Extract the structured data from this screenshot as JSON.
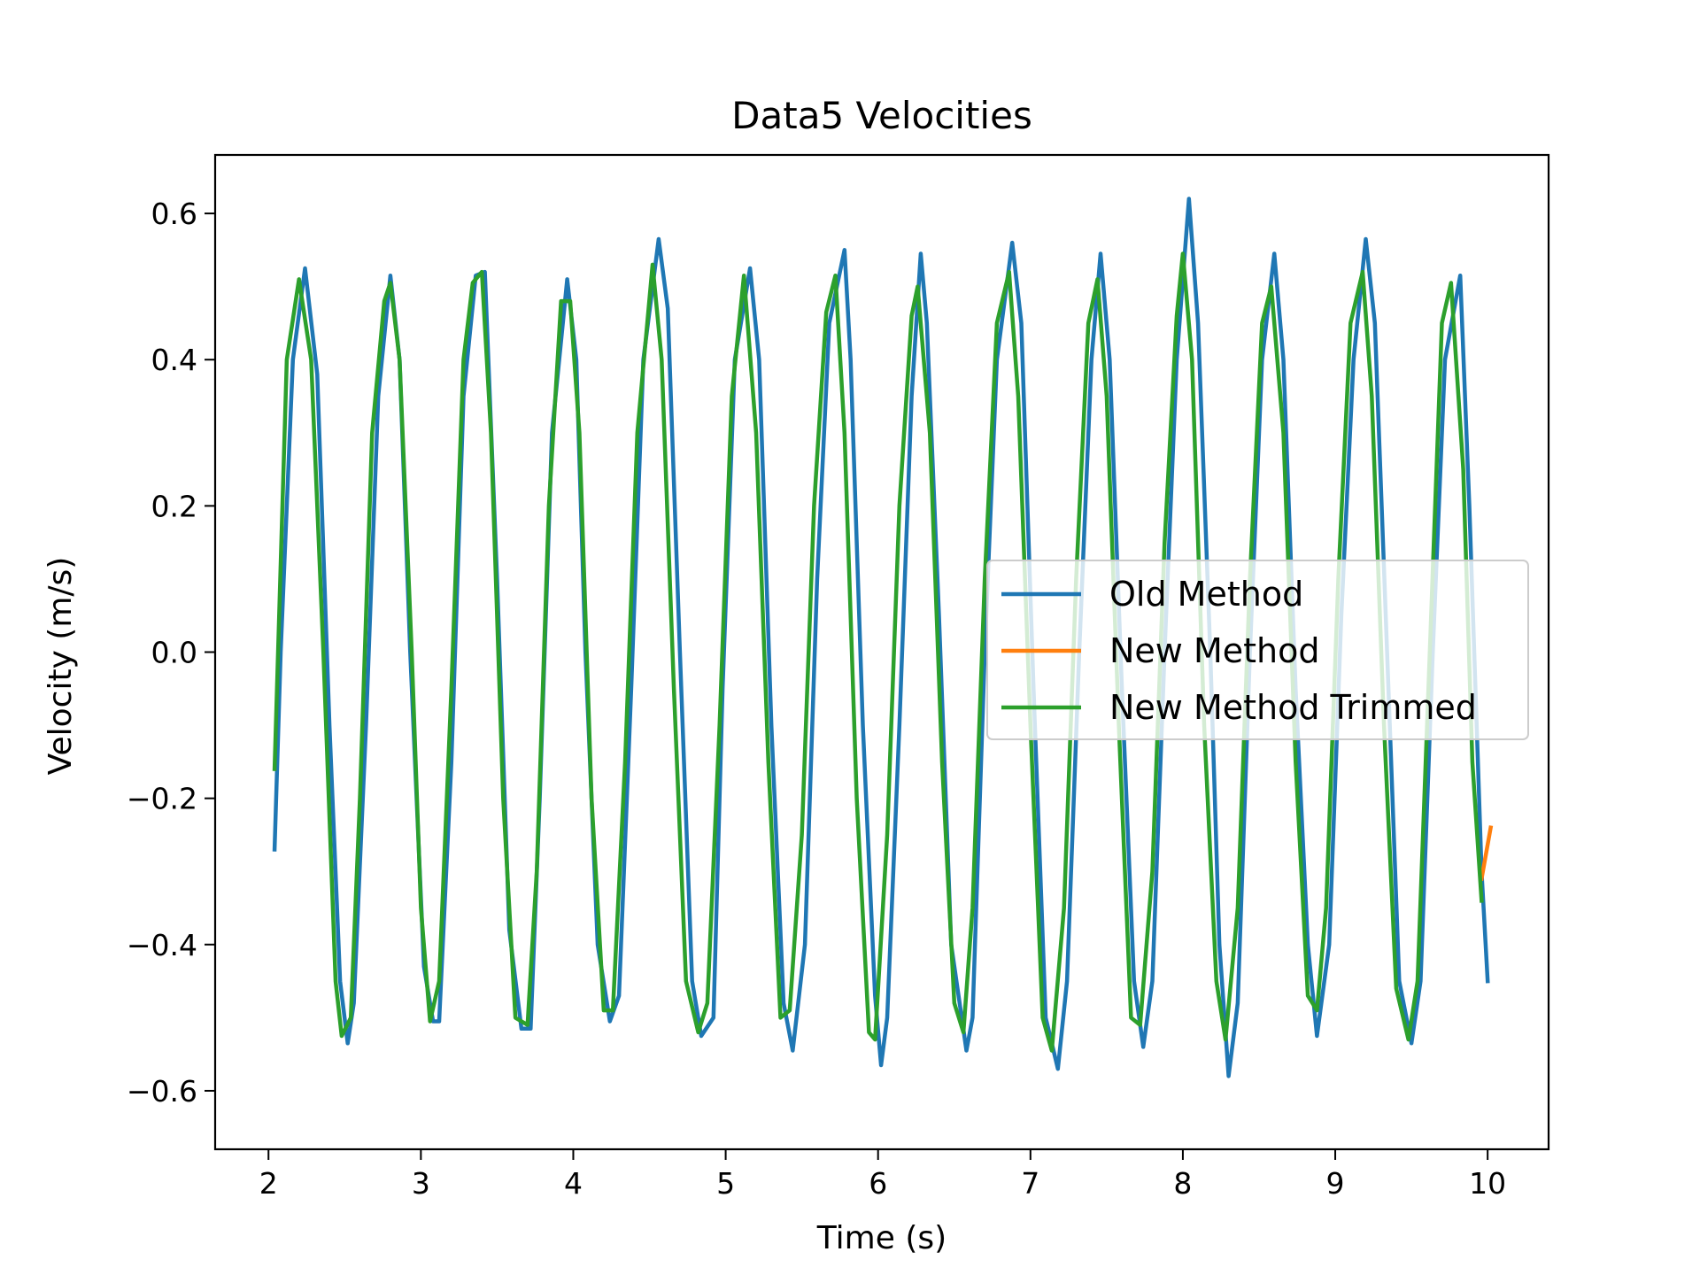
{
  "chart_data": {
    "type": "line",
    "title": "Data5 Velocities",
    "xlabel": "Time (s)",
    "ylabel": "Velocity (m/s)",
    "xlim": [
      1.65,
      10.4
    ],
    "ylim": [
      -0.68,
      0.68
    ],
    "x_ticks": [
      2,
      3,
      4,
      5,
      6,
      7,
      8,
      9,
      10
    ],
    "x_tick_labels": [
      "2",
      "3",
      "4",
      "5",
      "6",
      "7",
      "8",
      "9",
      "10"
    ],
    "y_ticks": [
      -0.6,
      -0.4,
      -0.2,
      0.0,
      0.2,
      0.4,
      0.6
    ],
    "y_tick_labels": [
      "−0.6",
      "−0.4",
      "−0.2",
      "0.0",
      "0.2",
      "0.4",
      "0.6"
    ],
    "grid": false,
    "legend_position": "center-right",
    "series": [
      {
        "name": "Old Method",
        "color": "#1f77b4",
        "points": [
          [
            2.04,
            -0.27
          ],
          [
            2.08,
            0.0
          ],
          [
            2.16,
            0.4
          ],
          [
            2.24,
            0.525
          ],
          [
            2.32,
            0.38
          ],
          [
            2.4,
            -0.1
          ],
          [
            2.47,
            -0.45
          ],
          [
            2.52,
            -0.535
          ],
          [
            2.56,
            -0.48
          ],
          [
            2.64,
            -0.1
          ],
          [
            2.72,
            0.35
          ],
          [
            2.8,
            0.515
          ],
          [
            2.86,
            0.4
          ],
          [
            2.93,
            0.0
          ],
          [
            3.02,
            -0.43
          ],
          [
            3.08,
            -0.505
          ],
          [
            3.12,
            -0.505
          ],
          [
            3.2,
            -0.15
          ],
          [
            3.28,
            0.35
          ],
          [
            3.36,
            0.515
          ],
          [
            3.42,
            0.52
          ],
          [
            3.5,
            0.1
          ],
          [
            3.58,
            -0.38
          ],
          [
            3.66,
            -0.515
          ],
          [
            3.72,
            -0.515
          ],
          [
            3.78,
            -0.2
          ],
          [
            3.86,
            0.3
          ],
          [
            3.96,
            0.51
          ],
          [
            4.02,
            0.4
          ],
          [
            4.08,
            0.0
          ],
          [
            4.16,
            -0.4
          ],
          [
            4.24,
            -0.505
          ],
          [
            4.3,
            -0.47
          ],
          [
            4.38,
            -0.05
          ],
          [
            4.46,
            0.4
          ],
          [
            4.56,
            0.565
          ],
          [
            4.62,
            0.47
          ],
          [
            4.7,
            0.0
          ],
          [
            4.78,
            -0.45
          ],
          [
            4.84,
            -0.525
          ],
          [
            4.92,
            -0.5
          ],
          [
            4.98,
            -0.05
          ],
          [
            5.06,
            0.4
          ],
          [
            5.16,
            0.525
          ],
          [
            5.22,
            0.4
          ],
          [
            5.3,
            -0.1
          ],
          [
            5.38,
            -0.48
          ],
          [
            5.44,
            -0.545
          ],
          [
            5.52,
            -0.4
          ],
          [
            5.6,
            0.1
          ],
          [
            5.68,
            0.45
          ],
          [
            5.78,
            0.55
          ],
          [
            5.82,
            0.4
          ],
          [
            5.9,
            -0.1
          ],
          [
            5.98,
            -0.47
          ],
          [
            6.02,
            -0.565
          ],
          [
            6.06,
            -0.5
          ],
          [
            6.14,
            -0.1
          ],
          [
            6.22,
            0.35
          ],
          [
            6.28,
            0.545
          ],
          [
            6.32,
            0.45
          ],
          [
            6.4,
            0.05
          ],
          [
            6.48,
            -0.4
          ],
          [
            6.58,
            -0.545
          ],
          [
            6.62,
            -0.5
          ],
          [
            6.7,
            0.0
          ],
          [
            6.78,
            0.4
          ],
          [
            6.88,
            0.56
          ],
          [
            6.94,
            0.45
          ],
          [
            7.02,
            -0.05
          ],
          [
            7.1,
            -0.5
          ],
          [
            7.18,
            -0.57
          ],
          [
            7.24,
            -0.45
          ],
          [
            7.32,
            0.0
          ],
          [
            7.4,
            0.4
          ],
          [
            7.46,
            0.545
          ],
          [
            7.52,
            0.4
          ],
          [
            7.6,
            -0.05
          ],
          [
            7.68,
            -0.45
          ],
          [
            7.74,
            -0.54
          ],
          [
            7.8,
            -0.45
          ],
          [
            7.88,
            0.0
          ],
          [
            7.96,
            0.4
          ],
          [
            8.04,
            0.62
          ],
          [
            8.1,
            0.45
          ],
          [
            8.18,
            0.0
          ],
          [
            8.24,
            -0.4
          ],
          [
            8.3,
            -0.58
          ],
          [
            8.36,
            -0.48
          ],
          [
            8.44,
            0.0
          ],
          [
            8.52,
            0.4
          ],
          [
            8.6,
            0.545
          ],
          [
            8.66,
            0.4
          ],
          [
            8.74,
            -0.05
          ],
          [
            8.82,
            -0.4
          ],
          [
            8.88,
            -0.525
          ],
          [
            8.96,
            -0.4
          ],
          [
            9.04,
            0.05
          ],
          [
            9.12,
            0.4
          ],
          [
            9.2,
            0.565
          ],
          [
            9.26,
            0.45
          ],
          [
            9.34,
            0.0
          ],
          [
            9.42,
            -0.45
          ],
          [
            9.5,
            -0.535
          ],
          [
            9.56,
            -0.45
          ],
          [
            9.64,
            0.0
          ],
          [
            9.72,
            0.4
          ],
          [
            9.82,
            0.515
          ],
          [
            9.88,
            0.2
          ],
          [
            9.96,
            -0.3
          ],
          [
            10.0,
            -0.45
          ]
        ]
      },
      {
        "name": "New Method",
        "color": "#ff7f0e",
        "points": [
          [
            9.96,
            -0.31
          ],
          [
            10.02,
            -0.24
          ]
        ]
      },
      {
        "name": "New Method Trimmed",
        "color": "#2ca02c",
        "points": [
          [
            2.04,
            -0.16
          ],
          [
            2.12,
            0.4
          ],
          [
            2.2,
            0.51
          ],
          [
            2.28,
            0.4
          ],
          [
            2.36,
            0.0
          ],
          [
            2.44,
            -0.45
          ],
          [
            2.48,
            -0.525
          ],
          [
            2.54,
            -0.5
          ],
          [
            2.6,
            -0.2
          ],
          [
            2.68,
            0.3
          ],
          [
            2.76,
            0.48
          ],
          [
            2.8,
            0.505
          ],
          [
            2.86,
            0.4
          ],
          [
            2.94,
            0.0
          ],
          [
            3.0,
            -0.35
          ],
          [
            3.06,
            -0.505
          ],
          [
            3.12,
            -0.45
          ],
          [
            3.2,
            -0.05
          ],
          [
            3.28,
            0.4
          ],
          [
            3.34,
            0.505
          ],
          [
            3.4,
            0.52
          ],
          [
            3.46,
            0.3
          ],
          [
            3.54,
            -0.2
          ],
          [
            3.62,
            -0.5
          ],
          [
            3.7,
            -0.51
          ],
          [
            3.76,
            -0.3
          ],
          [
            3.84,
            0.2
          ],
          [
            3.92,
            0.48
          ],
          [
            3.98,
            0.48
          ],
          [
            4.04,
            0.3
          ],
          [
            4.12,
            -0.2
          ],
          [
            4.2,
            -0.49
          ],
          [
            4.26,
            -0.49
          ],
          [
            4.34,
            -0.15
          ],
          [
            4.42,
            0.3
          ],
          [
            4.52,
            0.53
          ],
          [
            4.58,
            0.4
          ],
          [
            4.66,
            -0.05
          ],
          [
            4.74,
            -0.45
          ],
          [
            4.82,
            -0.52
          ],
          [
            4.88,
            -0.48
          ],
          [
            4.96,
            -0.1
          ],
          [
            5.04,
            0.35
          ],
          [
            5.12,
            0.515
          ],
          [
            5.2,
            0.3
          ],
          [
            5.28,
            -0.15
          ],
          [
            5.36,
            -0.5
          ],
          [
            5.42,
            -0.49
          ],
          [
            5.5,
            -0.25
          ],
          [
            5.58,
            0.2
          ],
          [
            5.66,
            0.465
          ],
          [
            5.72,
            0.515
          ],
          [
            5.78,
            0.3
          ],
          [
            5.86,
            -0.2
          ],
          [
            5.94,
            -0.52
          ],
          [
            5.98,
            -0.53
          ],
          [
            6.06,
            -0.25
          ],
          [
            6.14,
            0.2
          ],
          [
            6.22,
            0.46
          ],
          [
            6.26,
            0.5
          ],
          [
            6.34,
            0.3
          ],
          [
            6.42,
            -0.15
          ],
          [
            6.5,
            -0.48
          ],
          [
            6.56,
            -0.52
          ],
          [
            6.62,
            -0.35
          ],
          [
            6.7,
            0.1
          ],
          [
            6.78,
            0.45
          ],
          [
            6.86,
            0.52
          ],
          [
            6.92,
            0.35
          ],
          [
            7.0,
            -0.1
          ],
          [
            7.08,
            -0.5
          ],
          [
            7.14,
            -0.545
          ],
          [
            7.22,
            -0.35
          ],
          [
            7.3,
            0.1
          ],
          [
            7.38,
            0.45
          ],
          [
            7.44,
            0.51
          ],
          [
            7.5,
            0.35
          ],
          [
            7.58,
            -0.1
          ],
          [
            7.66,
            -0.5
          ],
          [
            7.72,
            -0.51
          ],
          [
            7.8,
            -0.3
          ],
          [
            7.88,
            0.15
          ],
          [
            7.96,
            0.46
          ],
          [
            8.0,
            0.545
          ],
          [
            8.06,
            0.4
          ],
          [
            8.14,
            -0.1
          ],
          [
            8.22,
            -0.45
          ],
          [
            8.28,
            -0.53
          ],
          [
            8.36,
            -0.35
          ],
          [
            8.44,
            0.1
          ],
          [
            8.52,
            0.45
          ],
          [
            8.58,
            0.5
          ],
          [
            8.66,
            0.3
          ],
          [
            8.74,
            -0.15
          ],
          [
            8.82,
            -0.47
          ],
          [
            8.88,
            -0.49
          ],
          [
            8.94,
            -0.35
          ],
          [
            9.02,
            0.1
          ],
          [
            9.1,
            0.45
          ],
          [
            9.18,
            0.52
          ],
          [
            9.24,
            0.35
          ],
          [
            9.32,
            -0.1
          ],
          [
            9.4,
            -0.46
          ],
          [
            9.48,
            -0.53
          ],
          [
            9.54,
            -0.45
          ],
          [
            9.62,
            0.0
          ],
          [
            9.7,
            0.45
          ],
          [
            9.76,
            0.505
          ],
          [
            9.84,
            0.25
          ],
          [
            9.9,
            -0.15
          ],
          [
            9.96,
            -0.34
          ]
        ]
      }
    ]
  }
}
